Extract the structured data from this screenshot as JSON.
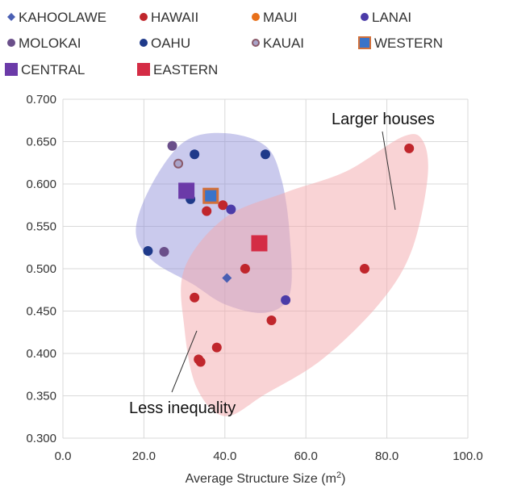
{
  "chart_data": {
    "type": "scatter",
    "title": "",
    "xlabel": "Average Structure Size (m",
    "xlabel_sup": "2",
    "xlabel_close": ")",
    "ylabel": "",
    "xlim": [
      0,
      100
    ],
    "ylim": [
      0.3,
      0.7
    ],
    "x_ticks": [
      "0.0",
      "20.0",
      "40.0",
      "60.0",
      "80.0",
      "100.0"
    ],
    "y_ticks": [
      "0.300",
      "0.350",
      "0.400",
      "0.450",
      "0.500",
      "0.550",
      "0.600",
      "0.650",
      "0.700"
    ],
    "grid": true,
    "legend_position": "top",
    "series": [
      {
        "name": "KAHOOLAWE",
        "marker": "diamond",
        "color": "#4a5fb3",
        "points": [
          [
            40.5,
            0.489
          ]
        ]
      },
      {
        "name": "HAWAII",
        "marker": "circle",
        "color": "#c0262c",
        "points": [
          [
            85.5,
            0.642
          ],
          [
            35.5,
            0.568
          ],
          [
            39.5,
            0.575
          ],
          [
            45.0,
            0.5
          ],
          [
            74.5,
            0.5
          ],
          [
            32.5,
            0.466
          ],
          [
            51.5,
            0.439
          ],
          [
            38.0,
            0.407
          ],
          [
            33.5,
            0.393
          ],
          [
            34.0,
            0.39
          ]
        ]
      },
      {
        "name": "MAUI",
        "marker": "circle",
        "color": "#e8701a",
        "points": []
      },
      {
        "name": "LANAI",
        "marker": "circle",
        "color": "#4b3ba8",
        "points": [
          [
            41.5,
            0.57
          ],
          [
            55.0,
            0.463
          ]
        ]
      },
      {
        "name": "MOLOKAI",
        "marker": "circle",
        "color": "#6a4f8a",
        "points": [
          [
            27.0,
            0.645
          ],
          [
            25.0,
            0.52
          ]
        ]
      },
      {
        "name": "OAHU",
        "marker": "circle",
        "color": "#1f3a8a",
        "points": [
          [
            32.5,
            0.635
          ],
          [
            50.0,
            0.635
          ],
          [
            21.0,
            0.521
          ],
          [
            31.5,
            0.582
          ]
        ]
      },
      {
        "name": "KAUAI",
        "marker": "circle-ring",
        "color": "#a9a4c9",
        "points": [
          [
            28.5,
            0.624
          ]
        ]
      },
      {
        "name": "WESTERN",
        "marker": "square",
        "color": "#3a73c9",
        "points": [
          [
            36.5,
            0.586
          ]
        ]
      },
      {
        "name": "CENTRAL",
        "marker": "square",
        "color": "#6b3aa8",
        "points": [
          [
            30.5,
            0.592
          ]
        ]
      },
      {
        "name": "EASTERN",
        "marker": "square",
        "color": "#d42c45",
        "points": [
          [
            48.5,
            0.53
          ]
        ]
      }
    ],
    "annotations": [
      {
        "text": "Larger houses",
        "position": "upper-right"
      },
      {
        "text": "Less inequality",
        "position": "lower-left"
      }
    ],
    "regions": [
      {
        "color": "#8080d8",
        "description": "blue shaded hull around upper-left cluster"
      },
      {
        "color": "#f2a0a4",
        "description": "red shaded hull around lower-right cluster"
      }
    ]
  },
  "colors": {
    "grid": "#d9d9d9",
    "blue_region": "#8a8ad6",
    "red_region": "#f4a7ab"
  }
}
